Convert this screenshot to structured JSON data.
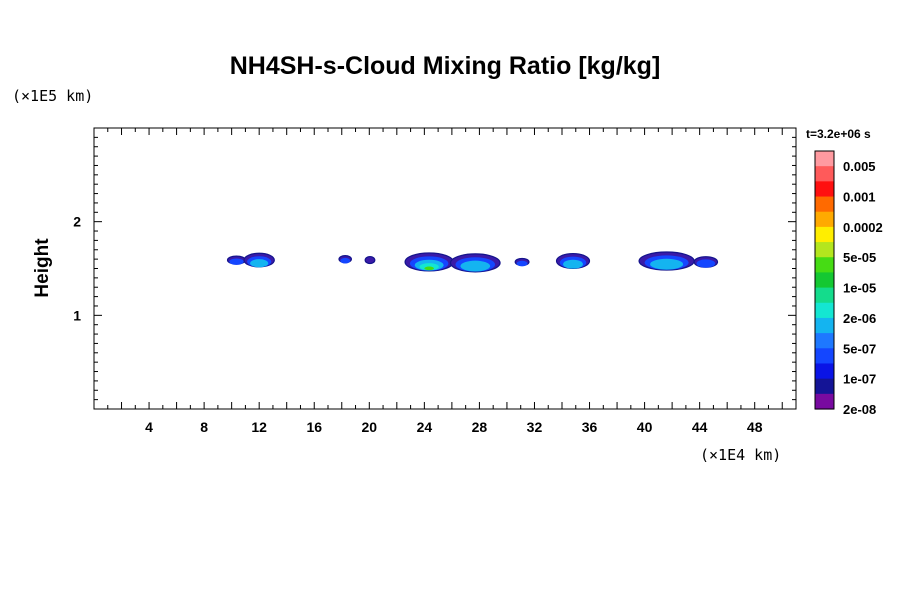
{
  "chart_data": {
    "type": "contour",
    "title": "NH4SH-s-Cloud Mixing Ratio [kg/kg]",
    "time_label": "t=3.2e+06 s",
    "xlabel": "",
    "ylabel": "Height",
    "x_unit": "(×1E4 km)",
    "y_unit": "(×1E5 km)",
    "xlim": [
      0,
      51
    ],
    "ylim": [
      0,
      3
    ],
    "x_ticks": [
      4,
      8,
      12,
      16,
      20,
      24,
      28,
      32,
      36,
      40,
      44,
      48
    ],
    "x_tick_labels": [
      "4",
      "8",
      "12",
      "16",
      "20",
      "24",
      "28",
      "32",
      "36",
      "40",
      "44",
      "48"
    ],
    "y_ticks": [
      1,
      2
    ],
    "y_tick_labels": [
      "1",
      "2"
    ],
    "colorbar": {
      "labels": [
        "0.005",
        "0.001",
        "0.0002",
        "5e-05",
        "1e-05",
        "2e-06",
        "5e-07",
        "1e-07",
        "2e-08"
      ],
      "colors": [
        "#ff9aa0",
        "#ff5a5a",
        "#ff1010",
        "#ff6a00",
        "#ffaa00",
        "#ffee00",
        "#b4e61e",
        "#46dc14",
        "#14c832",
        "#14dc8c",
        "#14e6d2",
        "#14b4f0",
        "#1e78ff",
        "#1446ff",
        "#0a14e6",
        "#141496",
        "#780aa0"
      ]
    },
    "clouds": [
      {
        "x": [
          9.7,
          11.0
        ],
        "y_center": 1.59,
        "peak_level": "1e-07"
      },
      {
        "x": [
          10.9,
          13.1
        ],
        "y_center": 1.59,
        "peak_level": "5e-07"
      },
      {
        "x": [
          17.8,
          18.7
        ],
        "y_center": 1.6,
        "peak_level": "1e-07"
      },
      {
        "x": [
          19.7,
          20.4
        ],
        "y_center": 1.59,
        "peak_level": "2e-08"
      },
      {
        "x": [
          22.6,
          26.1
        ],
        "y_center": 1.57,
        "peak_level": "1e-05"
      },
      {
        "x": [
          25.9,
          29.5
        ],
        "y_center": 1.56,
        "peak_level": "5e-07"
      },
      {
        "x": [
          30.6,
          31.6
        ],
        "y_center": 1.57,
        "peak_level": "1e-07"
      },
      {
        "x": [
          33.6,
          36.0
        ],
        "y_center": 1.58,
        "peak_level": "5e-07"
      },
      {
        "x": [
          39.6,
          43.6
        ],
        "y_center": 1.58,
        "peak_level": "5e-07"
      },
      {
        "x": [
          43.6,
          45.3
        ],
        "y_center": 1.57,
        "peak_level": "1e-07"
      }
    ]
  }
}
